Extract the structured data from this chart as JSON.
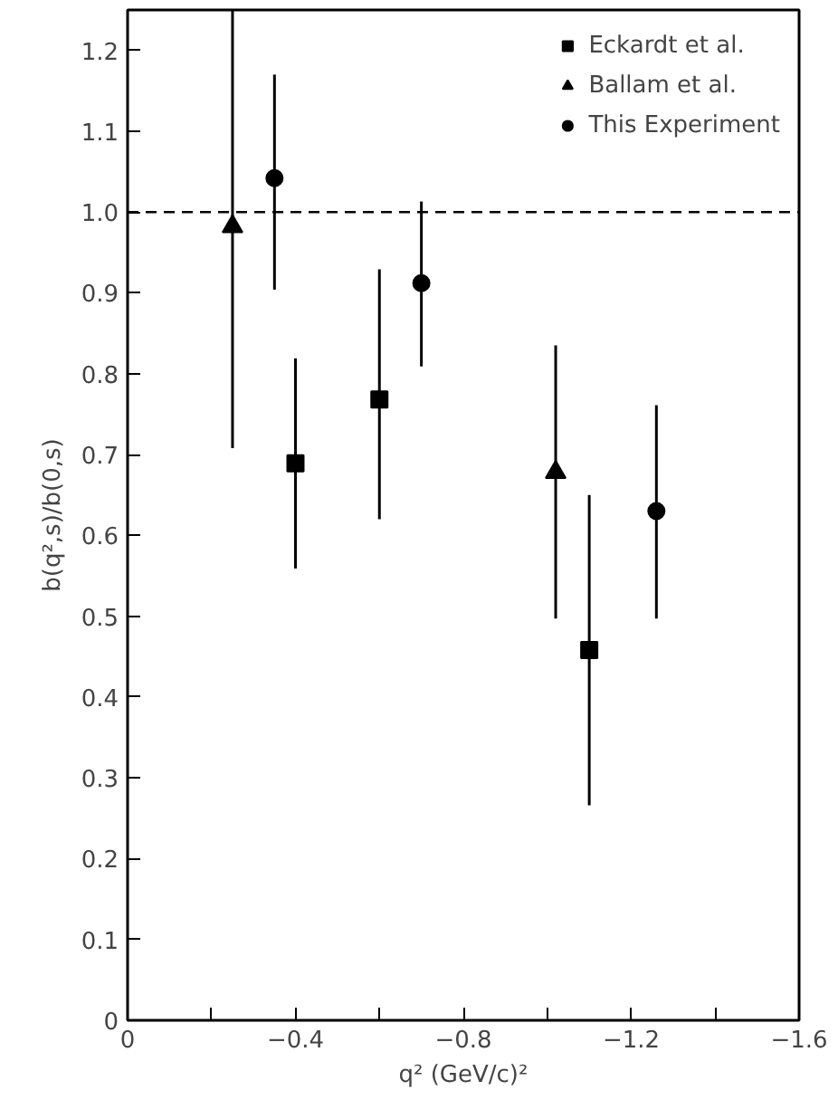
{
  "chart_data": {
    "type": "scatter",
    "xlabel": "q² (GeV/c)²",
    "ylabel": "b(q²,s)/b(0,s)",
    "xlim": [
      0,
      -1.6
    ],
    "ylim": [
      0,
      1.25
    ],
    "xticks": [
      0,
      {
        "value": -0.2,
        "label": null
      },
      -0.4,
      {
        "value": -0.6,
        "label": null
      },
      -0.8,
      {
        "value": -1.0,
        "label": null
      },
      -1.2,
      {
        "value": -1.4,
        "label": null
      },
      -1.6
    ],
    "yticks": [
      0,
      0.1,
      0.2,
      0.3,
      0.4,
      0.5,
      0.6,
      0.7,
      0.8,
      0.9,
      {
        "value": 1.0,
        "label": "1.0"
      },
      1.1,
      1.2
    ],
    "grid": false,
    "legend": "top right",
    "ref_lines": [
      {
        "axis": "y",
        "value": 1.0,
        "line_style": "dashed",
        "color": "#000000"
      }
    ],
    "series": [
      {
        "name": "Eckardt et al.",
        "color": "#000000",
        "marker": "square",
        "x": [
          -0.4,
          -0.6,
          -1.1
        ],
        "values": [
          0.689,
          0.768,
          0.458
        ],
        "errors": [
          [
            0.559,
            0.819
          ],
          [
            0.62,
            0.929
          ],
          [
            0.266,
            0.65
          ]
        ]
      },
      {
        "name": "Ballam et al.",
        "color": "#000000",
        "marker": "triangle",
        "x": [
          -0.25,
          -1.02
        ],
        "values": [
          0.982,
          0.678
        ],
        "errors": [
          [
            0.708,
            1.25
          ],
          [
            0.497,
            0.835
          ]
        ]
      },
      {
        "name": "This Experiment",
        "color": "#000000",
        "marker": "circle",
        "x": [
          -0.35,
          -0.7,
          -1.26
        ],
        "values": [
          1.042,
          0.912,
          0.63
        ],
        "errors": [
          [
            0.904,
            1.17
          ],
          [
            0.809,
            1.013
          ],
          [
            0.497,
            0.761
          ]
        ]
      }
    ]
  }
}
